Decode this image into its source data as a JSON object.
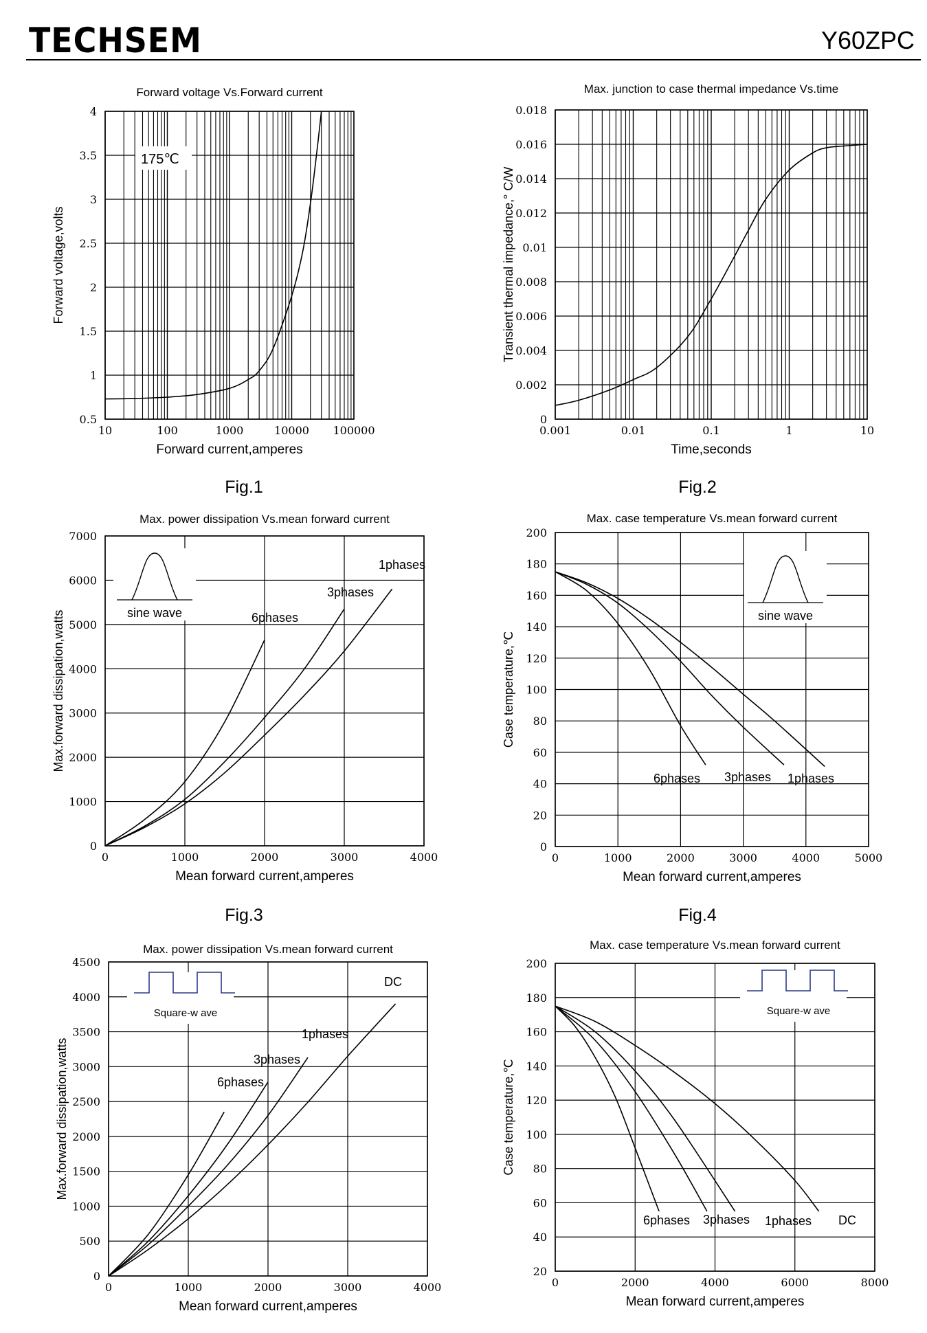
{
  "header": {
    "brand": "TECHSEM",
    "model": "Y60ZPC"
  },
  "figure_labels": [
    "Fig.1",
    "Fig.2",
    "Fig.3",
    "Fig.4"
  ],
  "chart_data": [
    {
      "type": "line",
      "title": "Forward voltage Vs.Forward current",
      "xlabel": "Forward current,amperes",
      "ylabel": "Forward voltage,volts",
      "xscale": "log",
      "xlim": [
        10,
        100000
      ],
      "ylim": [
        0.5,
        4
      ],
      "xticks": [
        "10",
        "100",
        "1000",
        "10000",
        "100000"
      ],
      "yticks": [
        "0.5",
        "1",
        "1.5",
        "2",
        "2.5",
        "3",
        "3.5",
        "4"
      ],
      "grid": true,
      "annotations": [
        "175℃"
      ],
      "series": [
        {
          "x": [
            10,
            30,
            100,
            300,
            1000,
            2000,
            3000,
            5000,
            10000,
            15000,
            20000,
            25000,
            30000
          ],
          "y": [
            0.73,
            0.735,
            0.75,
            0.78,
            0.85,
            0.95,
            1.05,
            1.3,
            1.9,
            2.4,
            2.95,
            3.5,
            4.0
          ]
        }
      ]
    },
    {
      "type": "line",
      "title": "Max. junction to case thermal impedance Vs.time",
      "xlabel": "Time,seconds",
      "ylabel": "Transient thermal impedance,° C/W",
      "xscale": "log",
      "xlim": [
        0.001,
        10
      ],
      "ylim": [
        0,
        0.018
      ],
      "xticks": [
        "0.001",
        "0.01",
        "0.1",
        "1",
        "10"
      ],
      "yticks": [
        "0",
        "0.002",
        "0.004",
        "0.006",
        "0.008",
        "0.01",
        "0.012",
        "0.014",
        "0.016",
        "0.018"
      ],
      "grid": true,
      "series": [
        {
          "x": [
            0.001,
            0.002,
            0.005,
            0.01,
            0.02,
            0.05,
            0.1,
            0.2,
            0.3,
            0.5,
            1,
            2,
            3,
            5,
            10
          ],
          "y": [
            0.0008,
            0.0011,
            0.0017,
            0.0023,
            0.003,
            0.0048,
            0.007,
            0.0095,
            0.011,
            0.0128,
            0.0145,
            0.0155,
            0.0158,
            0.0159,
            0.016
          ]
        }
      ]
    },
    {
      "type": "line",
      "title": "Max. power dissipation Vs.mean forward current",
      "xlabel": "Mean forward current,amperes",
      "ylabel": "Max.forward dissipation,watts",
      "xlim": [
        0,
        4000
      ],
      "ylim": [
        0,
        7000
      ],
      "xticks": [
        "0",
        "1000",
        "2000",
        "3000",
        "4000"
      ],
      "yticks": [
        "0",
        "1000",
        "2000",
        "3000",
        "4000",
        "5000",
        "6000",
        "7000"
      ],
      "grid": true,
      "legend_text": "sine wave",
      "series": [
        {
          "name": "6phases",
          "x": [
            0,
            500,
            1000,
            1500,
            2000
          ],
          "y": [
            0,
            600,
            1450,
            2800,
            4650
          ]
        },
        {
          "name": "3phases",
          "x": [
            0,
            500,
            1000,
            1500,
            2000,
            2500,
            3000
          ],
          "y": [
            0,
            450,
            1050,
            1900,
            2900,
            4000,
            5350
          ]
        },
        {
          "name": "1phases",
          "x": [
            0,
            500,
            1000,
            1500,
            2000,
            2500,
            3000,
            3600
          ],
          "y": [
            0,
            420,
            950,
            1650,
            2500,
            3400,
            4400,
            5800
          ]
        }
      ]
    },
    {
      "type": "line",
      "title": "Max. case temperature Vs.mean forward current",
      "xlabel": "Mean forward current,amperes",
      "ylabel": "Case temperature,℃",
      "xlim": [
        0,
        5000
      ],
      "ylim": [
        0,
        200
      ],
      "xticks": [
        "0",
        "1000",
        "2000",
        "3000",
        "4000",
        "5000"
      ],
      "yticks": [
        "0",
        "20",
        "40",
        "60",
        "80",
        "100",
        "120",
        "140",
        "160",
        "180",
        "200"
      ],
      "grid": true,
      "legend_text": "sine wave",
      "series": [
        {
          "name": "6phases",
          "x": [
            0,
            500,
            1000,
            1500,
            2000,
            2400
          ],
          "y": [
            175,
            163,
            142,
            113,
            77,
            52
          ]
        },
        {
          "name": "3phases",
          "x": [
            0,
            500,
            1000,
            1500,
            2000,
            2500,
            3000,
            3650
          ],
          "y": [
            175,
            167,
            155,
            138,
            118,
            96,
            76,
            52
          ]
        },
        {
          "name": "1phases",
          "x": [
            0,
            500,
            1000,
            1500,
            2000,
            2500,
            3000,
            3500,
            4300
          ],
          "y": [
            175,
            168,
            158,
            145,
            130,
            114,
            97,
            80,
            51
          ]
        }
      ]
    },
    {
      "type": "line",
      "title": "Max. power dissipation Vs.mean forward current",
      "xlabel": "Mean forward current,amperes",
      "ylabel": "Max.forward dissipation,watts",
      "xlim": [
        0,
        4000
      ],
      "ylim": [
        0,
        4500
      ],
      "xticks": [
        "0",
        "1000",
        "2000",
        "3000",
        "4000"
      ],
      "yticks": [
        "0",
        "500",
        "1000",
        "1500",
        "2000",
        "2500",
        "3000",
        "3500",
        "4000",
        "4500"
      ],
      "grid": true,
      "legend_text": "Square-w ave",
      "series": [
        {
          "name": "6phases",
          "x": [
            0,
            500,
            1000,
            1450
          ],
          "y": [
            0,
            600,
            1450,
            2350
          ]
        },
        {
          "name": "3phases",
          "x": [
            0,
            500,
            1000,
            1500,
            2000
          ],
          "y": [
            0,
            500,
            1150,
            1900,
            2780
          ]
        },
        {
          "name": "1phases",
          "x": [
            0,
            500,
            1000,
            1500,
            2000,
            2500
          ],
          "y": [
            0,
            450,
            1000,
            1600,
            2300,
            3130
          ]
        },
        {
          "name": "DC",
          "x": [
            0,
            500,
            1000,
            1500,
            2000,
            2500,
            3000,
            3600
          ],
          "y": [
            0,
            380,
            820,
            1320,
            1880,
            2490,
            3150,
            3900
          ]
        }
      ]
    },
    {
      "type": "line",
      "title": "Max. case temperature Vs.mean forward current",
      "xlabel": "Mean forward current,amperes",
      "ylabel": "Case temperature,℃",
      "xlim": [
        0,
        8000
      ],
      "ylim": [
        20,
        200
      ],
      "xticks": [
        "0",
        "2000",
        "4000",
        "6000",
        "8000"
      ],
      "yticks": [
        "20",
        "40",
        "60",
        "80",
        "100",
        "120",
        "140",
        "160",
        "180",
        "200"
      ],
      "grid": true,
      "legend_text": "Square-w ave",
      "series": [
        {
          "name": "6phases",
          "x": [
            0,
            500,
            1000,
            1500,
            2000,
            2600
          ],
          "y": [
            175,
            163,
            145,
            122,
            92,
            55
          ]
        },
        {
          "name": "3phases",
          "x": [
            0,
            1000,
            2000,
            3000,
            3800
          ],
          "y": [
            175,
            155,
            125,
            88,
            55
          ]
        },
        {
          "name": "1phases",
          "x": [
            0,
            1000,
            2000,
            3000,
            4500
          ],
          "y": [
            175,
            160,
            137,
            108,
            55
          ]
        },
        {
          "name": "DC",
          "x": [
            0,
            1000,
            2000,
            3000,
            4000,
            5000,
            6000,
            6600
          ],
          "y": [
            175,
            166,
            152,
            136,
            118,
            97,
            73,
            55
          ]
        }
      ]
    }
  ]
}
